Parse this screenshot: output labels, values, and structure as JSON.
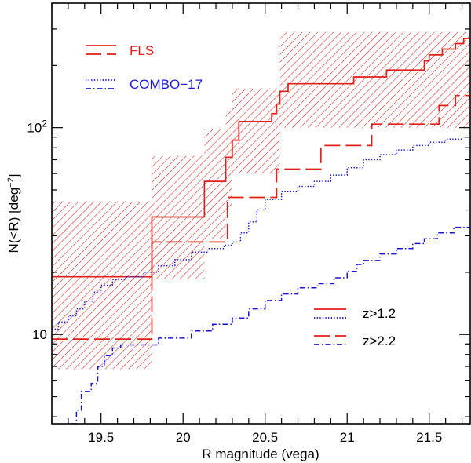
{
  "chart_data": {
    "type": "line",
    "scale": {
      "x": "linear",
      "y": "log"
    },
    "xlim": [
      19.2,
      21.75
    ],
    "ylim": [
      3.7,
      400
    ],
    "xlabel": "R magnitude (vega)",
    "ylabel": {
      "main": "N(<R) [deg",
      "exponent": "−2",
      "close": "]"
    },
    "x_ticks": [
      {
        "value": 19.5,
        "label": "19.5"
      },
      {
        "value": 20.0,
        "label": "20"
      },
      {
        "value": 20.5,
        "label": "20.5"
      },
      {
        "value": 21.0,
        "label": "21"
      },
      {
        "value": 21.5,
        "label": "21.5"
      }
    ],
    "x_minor_step": 0.1,
    "y_ticks": [
      {
        "value": 10,
        "base": "10",
        "exponent": ""
      },
      {
        "value": 100,
        "base": "10",
        "exponent": "2"
      }
    ],
    "y_minor": [
      4,
      5,
      6,
      7,
      8,
      9,
      20,
      30,
      40,
      50,
      60,
      70,
      80,
      90,
      200,
      300
    ],
    "colors": {
      "fls": "#e0201a",
      "combo": "#1a18d6"
    },
    "legend_top": [
      {
        "label": "FLS",
        "color": "#e0201a",
        "dashes": [
          "none",
          "20,7"
        ]
      },
      {
        "label": "COMBO−17",
        "color": "#1a18d6",
        "dashes": [
          "1.4,2.2",
          "7,3,1.5,3"
        ]
      }
    ],
    "legend_bottom": [
      {
        "label": "z>1.2",
        "dashes": [
          "none",
          "1.4,2.2"
        ]
      },
      {
        "label": "z>2.2",
        "dashes": [
          "20,7",
          "7,3,1.5,3"
        ]
      }
    ],
    "band": {
      "name": "FLS z>1.2 uncertainty",
      "series": "fls_z12",
      "color": "#e0201a",
      "segments": [
        {
          "x0": 19.2,
          "x1": 19.81,
          "lo": 6.8,
          "hi": 44
        },
        {
          "x0": 19.81,
          "x1": 20.13,
          "lo": 18.5,
          "hi": 73
        },
        {
          "x0": 20.13,
          "x1": 20.26,
          "lo": 29,
          "hi": 98
        },
        {
          "x0": 20.26,
          "x1": 20.3,
          "lo": 40,
          "hi": 120
        },
        {
          "x0": 20.3,
          "x1": 20.59,
          "lo": 60,
          "hi": 155
        },
        {
          "x0": 20.59,
          "x1": 21.75,
          "lo": 100,
          "hi": 290
        }
      ]
    },
    "series": [
      {
        "name": "fls_z12",
        "label": "FLS z>1.2",
        "color": "#e0201a",
        "dash": "none",
        "width": 1.7,
        "steps": [
          [
            19.2,
            19
          ],
          [
            19.81,
            37
          ],
          [
            20.13,
            55
          ],
          [
            20.26,
            72
          ],
          [
            20.3,
            87
          ],
          [
            20.34,
            107
          ],
          [
            20.54,
            117
          ],
          [
            20.57,
            130
          ],
          [
            20.59,
            150
          ],
          [
            20.64,
            163
          ],
          [
            21.04,
            176
          ],
          [
            21.24,
            190
          ],
          [
            21.47,
            210
          ],
          [
            21.5,
            225
          ],
          [
            21.58,
            240
          ],
          [
            21.66,
            255
          ],
          [
            21.71,
            270
          ]
        ]
      },
      {
        "name": "fls_z22",
        "label": "FLS z>2.2",
        "color": "#e0201a",
        "dash": "20,7",
        "width": 1.7,
        "steps": [
          [
            19.2,
            9.5
          ],
          [
            19.81,
            28
          ],
          [
            20.27,
            46
          ],
          [
            20.57,
            63
          ],
          [
            20.84,
            82
          ],
          [
            21.15,
            104
          ],
          [
            21.56,
            128
          ],
          [
            21.66,
            143
          ]
        ]
      },
      {
        "name": "combo_z12",
        "label": "COMBO-17 z>1.2",
        "color": "#1a18d6",
        "dash": "1.4,2.2",
        "width": 1.5,
        "steps": [
          [
            19.2,
            10.6
          ],
          [
            19.24,
            11.5
          ],
          [
            19.3,
            12.3
          ],
          [
            19.35,
            13.3
          ],
          [
            19.4,
            14.5
          ],
          [
            19.45,
            16.0
          ],
          [
            19.5,
            17.3
          ],
          [
            19.57,
            18.4
          ],
          [
            19.65,
            19.0
          ],
          [
            19.76,
            20.0
          ],
          [
            19.85,
            21.5
          ],
          [
            19.95,
            23.0
          ],
          [
            20.05,
            25.0
          ],
          [
            20.15,
            26.0
          ],
          [
            20.25,
            27.0
          ],
          [
            20.3,
            28.0
          ],
          [
            20.35,
            31.0
          ],
          [
            20.4,
            35.0
          ],
          [
            20.45,
            40.0
          ],
          [
            20.5,
            45.0
          ],
          [
            20.6,
            49.0
          ],
          [
            20.7,
            52.0
          ],
          [
            20.8,
            55.0
          ],
          [
            20.9,
            59.0
          ],
          [
            21.0,
            64.0
          ],
          [
            21.1,
            70.0
          ],
          [
            21.2,
            74.0
          ],
          [
            21.3,
            78.0
          ],
          [
            21.4,
            82.0
          ],
          [
            21.5,
            85.0
          ],
          [
            21.6,
            88.0
          ],
          [
            21.7,
            90.0
          ]
        ]
      },
      {
        "name": "combo_z22",
        "label": "COMBO-17 z>2.2",
        "color": "#1a18d6",
        "dash": "7,3,1.5,3",
        "width": 1.5,
        "steps": [
          [
            19.32,
            3.7
          ],
          [
            19.35,
            4.3
          ],
          [
            19.38,
            5.3
          ],
          [
            19.44,
            5.8
          ],
          [
            19.48,
            7.0
          ],
          [
            19.52,
            7.9
          ],
          [
            19.57,
            8.6
          ],
          [
            19.62,
            8.9
          ],
          [
            19.85,
            9.6
          ],
          [
            20.05,
            10.4
          ],
          [
            20.18,
            11.2
          ],
          [
            20.3,
            12.0
          ],
          [
            20.4,
            13.3
          ],
          [
            20.5,
            14.6
          ],
          [
            20.6,
            15.7
          ],
          [
            20.7,
            16.8
          ],
          [
            20.82,
            17.6
          ],
          [
            20.92,
            18.8
          ],
          [
            21.0,
            20.2
          ],
          [
            21.06,
            21.8
          ],
          [
            21.1,
            22.8
          ],
          [
            21.2,
            24.5
          ],
          [
            21.3,
            26.0
          ],
          [
            21.4,
            27.5
          ],
          [
            21.47,
            29.0
          ],
          [
            21.55,
            31.0
          ],
          [
            21.65,
            33.0
          ]
        ]
      }
    ]
  }
}
